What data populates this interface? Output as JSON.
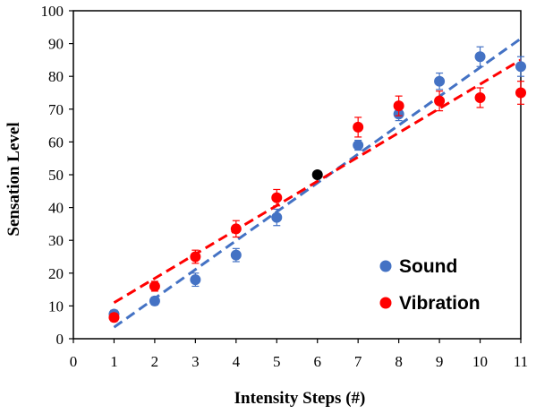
{
  "chart_data": {
    "type": "scatter",
    "title": "",
    "xlabel": "Intensity Steps (#)",
    "ylabel": "Sensation Level",
    "xlim": [
      0,
      11
    ],
    "ylim": [
      0,
      100
    ],
    "x_ticks": [
      "0",
      "1",
      "2",
      "3",
      "4",
      "5",
      "6",
      "7",
      "8",
      "9",
      "10",
      "11"
    ],
    "y_ticks": [
      "0",
      "10",
      "20",
      "30",
      "40",
      "50",
      "60",
      "70",
      "80",
      "90",
      "100"
    ],
    "grid": false,
    "legend_position": "bottom-right",
    "series": [
      {
        "name": "Sound",
        "color": "#4472C4",
        "x": [
          1,
          2,
          3,
          4,
          5,
          7,
          8,
          9,
          10,
          11
        ],
        "y": [
          7.5,
          11.5,
          18,
          25.5,
          37,
          59,
          68.5,
          78.5,
          86,
          83
        ],
        "error": [
          1.2,
          1.2,
          2,
          2,
          2.5,
          1.5,
          2,
          2.5,
          3,
          3
        ],
        "trend": {
          "x": [
            1,
            11
          ],
          "y": [
            3.5,
            91.5
          ]
        }
      },
      {
        "name": "Vibration",
        "color": "#FF0000",
        "x": [
          1,
          2,
          3,
          4,
          5,
          7,
          8,
          9,
          10,
          11
        ],
        "y": [
          6.5,
          16,
          25,
          33.5,
          43,
          64.5,
          71,
          72.5,
          73.5,
          75
        ],
        "error": [
          1.2,
          1.5,
          2,
          2.5,
          2.5,
          3,
          3,
          3,
          3,
          3.5
        ],
        "trend": {
          "x": [
            1,
            11
          ],
          "y": [
            11,
            85
          ]
        }
      },
      {
        "name": "",
        "color": "#000000",
        "x": [
          6
        ],
        "y": [
          50
        ],
        "error": [
          0
        ]
      }
    ]
  }
}
